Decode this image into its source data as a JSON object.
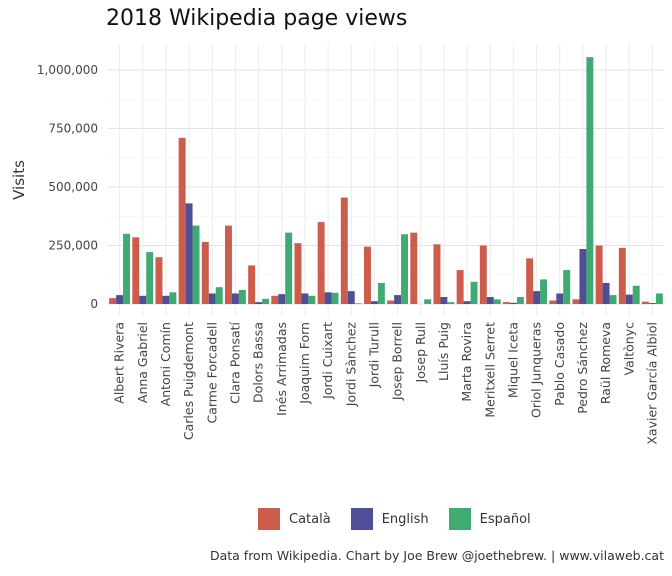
{
  "chart_data": {
    "type": "bar",
    "title": "2018 Wikipedia page views",
    "ylabel": "Visits",
    "xlabel": "",
    "ylim": [
      0,
      1100000
    ],
    "yticks": [
      0,
      250000,
      500000,
      750000,
      1000000
    ],
    "ytick_labels": [
      "0",
      "250,000",
      "500,000",
      "750,000",
      "1,000,000"
    ],
    "grid": true,
    "legend_position": "bottom",
    "categories": [
      "Albert Rivera",
      "Anna Gabriel",
      "Antoni Comín",
      "Carles Puigdemont",
      "Carme Forcadell",
      "Clara Ponsatí",
      "Dolors Bassa",
      "Inés Arrimadas",
      "Joaquim Forn",
      "Jordi Cuixart",
      "Jordi Sànchez",
      "Jordi Turull",
      "Josep Borrell",
      "Josep Rull",
      "Lluís Puig",
      "Marta Rovira",
      "Meritxell Serret",
      "Miquel Iceta",
      "Oriol Junqueras",
      "Pablo Casado",
      "Pedro Sánchez",
      "Raül Romeva",
      "Valtònyc",
      "Xavier García Albiol"
    ],
    "series": [
      {
        "name": "Català",
        "color": "#CD5C4C",
        "values": [
          25000,
          285000,
          200000,
          710000,
          265000,
          335000,
          165000,
          35000,
          260000,
          350000,
          455000,
          245000,
          15000,
          305000,
          255000,
          145000,
          250000,
          8000,
          195000,
          15000,
          20000,
          250000,
          240000,
          10000
        ]
      },
      {
        "name": "English",
        "color": "#4E4F96",
        "values": [
          38000,
          35000,
          35000,
          430000,
          45000,
          45000,
          8000,
          42000,
          45000,
          50000,
          55000,
          12000,
          38000,
          0,
          30000,
          12000,
          30000,
          5000,
          55000,
          45000,
          235000,
          90000,
          40000,
          4000
        ]
      },
      {
        "name": "Español",
        "color": "#3FAA72",
        "values": [
          300000,
          222000,
          50000,
          335000,
          72000,
          60000,
          22000,
          305000,
          35000,
          48000,
          3000,
          90000,
          298000,
          20000,
          8000,
          95000,
          20000,
          30000,
          105000,
          145000,
          1055000,
          38000,
          78000,
          45000
        ]
      }
    ]
  },
  "caption": "Data from Wikipedia. Chart by Joe Brew @joethebrew. | www.vilaweb.cat"
}
